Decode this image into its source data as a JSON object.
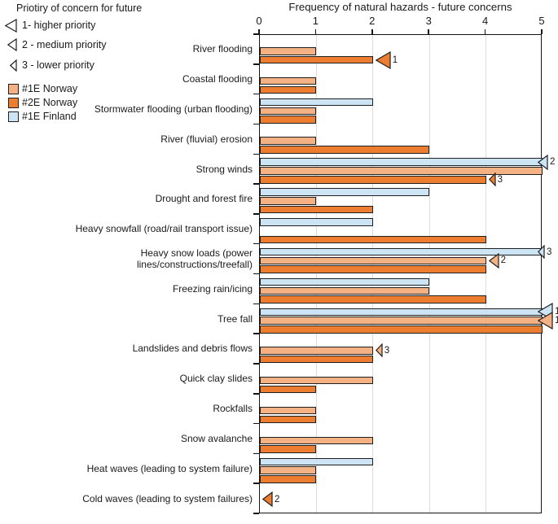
{
  "priority_legend": {
    "title": "Priotiry of concern for future",
    "items": [
      {
        "label": "1- higher priority",
        "priority": 1
      },
      {
        "label": "2 - medium priority",
        "priority": 2
      },
      {
        "label": "3 - lower priority",
        "priority": 3
      }
    ]
  },
  "series_legend": [
    {
      "label": "#1E Norway",
      "color": "#F4B183"
    },
    {
      "label": "#2E Norway",
      "color": "#ED7D31"
    },
    {
      "label": "#1E Finland",
      "color": "#CDE4F4"
    }
  ],
  "colors": {
    "bar_border": "#1f1f1f",
    "gridline": "#DCDCDC",
    "axis": "#141414"
  },
  "chart_data": {
    "type": "bar",
    "orientation": "horizontal",
    "title": "Frequency of natural hazards - future concerns",
    "xlabel_position": "top",
    "xlim": [
      0,
      5
    ],
    "xticks": [
      "0",
      "1",
      "2",
      "3",
      "4",
      "5"
    ],
    "grid": true,
    "categories": [
      "River flooding",
      "Coastal flooding",
      "Stormwater flooding (urban flooding)",
      "River (fluvial) erosion",
      "Strong winds",
      "Drought and forest fire",
      "Heavy snowfall (road/rail transport issue)",
      "Heavy snow loads (power lines/constructions/treefall)",
      "Freezing rain/icing",
      "Tree fall",
      "Landslides and debris flows",
      "Quick clay slides",
      "Rockfalls",
      "Snow avalanche",
      "Heat waves (leading to system failure)",
      "Cold waves (leading to system failures)"
    ],
    "series": [
      {
        "name": "#1E Finland",
        "color": "#CDE4F4",
        "values": [
          0,
          0,
          2,
          0,
          5,
          3,
          2,
          5,
          3,
          5,
          0,
          0,
          0,
          0,
          2,
          0
        ]
      },
      {
        "name": "#1E Norway",
        "color": "#F4B183",
        "values": [
          1,
          1,
          1,
          1,
          5,
          1,
          0,
          4,
          3,
          5,
          2,
          2,
          1,
          2,
          1,
          0
        ]
      },
      {
        "name": "#2E Norway",
        "color": "#ED7D31",
        "values": [
          2,
          1,
          1,
          3,
          4,
          2,
          4,
          4,
          4,
          5,
          2,
          1,
          1,
          1,
          1,
          0
        ]
      }
    ],
    "priority_markers": [
      {
        "category": "River flooding",
        "series": "#2E Norway",
        "x": 2,
        "priority": 1,
        "label": "1"
      },
      {
        "category": "Strong winds",
        "series": "#1E Finland",
        "x": 5,
        "priority": 2,
        "label": "2"
      },
      {
        "category": "Strong winds",
        "series": "#2E Norway",
        "x": 4,
        "priority": 3,
        "label": "3"
      },
      {
        "category": "Heavy snow loads (power lines/constructions/treefall)",
        "series": "#1E Finland",
        "x": 5,
        "priority": 3,
        "label": "3"
      },
      {
        "category": "Heavy snow loads (power lines/constructions/treefall)",
        "series": "#1E Norway",
        "x": 4,
        "priority": 2,
        "label": "2"
      },
      {
        "category": "Tree fall",
        "series": "#1E Finland",
        "x": 5,
        "priority": 1,
        "label": "1"
      },
      {
        "category": "Tree fall",
        "series": "#1E Norway",
        "x": 5,
        "priority": 1,
        "label": "1"
      },
      {
        "category": "Landslides and debris flows",
        "series": "#1E Norway",
        "x": 2,
        "priority": 3,
        "label": "3"
      },
      {
        "category": "Cold waves (leading to system failures)",
        "series": "#2E Norway",
        "x": 0,
        "priority": 2,
        "label": "2"
      }
    ]
  }
}
